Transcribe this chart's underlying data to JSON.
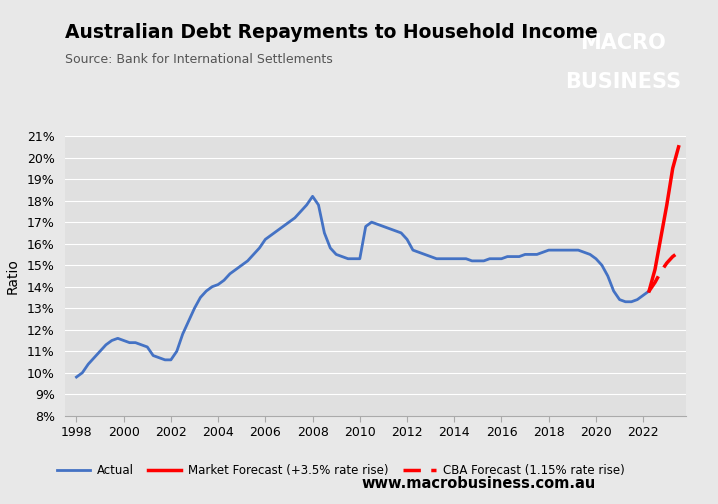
{
  "title": "Australian Debt Repayments to Household Income",
  "source": "Source: Bank for International Settlements",
  "ylabel": "Ratio",
  "website": "www.macrobusiness.com.au",
  "background_color": "#e8e8e8",
  "plot_bg_color": "#e0e0e0",
  "actual_color": "#4472C4",
  "forecast_solid_color": "#FF0000",
  "forecast_dashed_color": "#FF0000",
  "ylim": [
    0.08,
    0.21
  ],
  "yticks": [
    0.08,
    0.09,
    0.1,
    0.11,
    0.12,
    0.13,
    0.14,
    0.15,
    0.16,
    0.17,
    0.18,
    0.19,
    0.2,
    0.21
  ],
  "xlim": [
    1997.5,
    2023.8
  ],
  "xticks": [
    1998,
    2000,
    2002,
    2004,
    2006,
    2008,
    2010,
    2012,
    2014,
    2016,
    2018,
    2020,
    2022
  ],
  "actual_x": [
    1998,
    1998.25,
    1998.5,
    1998.75,
    1999,
    1999.25,
    1999.5,
    1999.75,
    2000,
    2000.25,
    2000.5,
    2000.75,
    2001,
    2001.25,
    2001.5,
    2001.75,
    2002,
    2002.25,
    2002.5,
    2002.75,
    2003,
    2003.25,
    2003.5,
    2003.75,
    2004,
    2004.25,
    2004.5,
    2004.75,
    2005,
    2005.25,
    2005.5,
    2005.75,
    2006,
    2006.25,
    2006.5,
    2006.75,
    2007,
    2007.25,
    2007.5,
    2007.75,
    2008,
    2008.25,
    2008.5,
    2008.75,
    2009,
    2009.25,
    2009.5,
    2009.75,
    2010,
    2010.25,
    2010.5,
    2010.75,
    2011,
    2011.25,
    2011.5,
    2011.75,
    2012,
    2012.25,
    2012.5,
    2012.75,
    2013,
    2013.25,
    2013.5,
    2013.75,
    2014,
    2014.25,
    2014.5,
    2014.75,
    2015,
    2015.25,
    2015.5,
    2015.75,
    2016,
    2016.25,
    2016.5,
    2016.75,
    2017,
    2017.25,
    2017.5,
    2017.75,
    2018,
    2018.25,
    2018.5,
    2018.75,
    2019,
    2019.25,
    2019.5,
    2019.75,
    2020,
    2020.25,
    2020.5,
    2020.75,
    2021,
    2021.25,
    2021.5,
    2021.75,
    2022,
    2022.25
  ],
  "actual_y": [
    0.098,
    0.1,
    0.104,
    0.107,
    0.11,
    0.113,
    0.115,
    0.116,
    0.115,
    0.114,
    0.114,
    0.113,
    0.112,
    0.108,
    0.107,
    0.106,
    0.106,
    0.11,
    0.118,
    0.124,
    0.13,
    0.135,
    0.138,
    0.14,
    0.141,
    0.143,
    0.146,
    0.148,
    0.15,
    0.152,
    0.155,
    0.158,
    0.162,
    0.164,
    0.166,
    0.168,
    0.17,
    0.172,
    0.175,
    0.178,
    0.182,
    0.178,
    0.165,
    0.158,
    0.155,
    0.154,
    0.153,
    0.153,
    0.153,
    0.168,
    0.17,
    0.169,
    0.168,
    0.167,
    0.166,
    0.165,
    0.162,
    0.157,
    0.156,
    0.155,
    0.154,
    0.153,
    0.153,
    0.153,
    0.153,
    0.153,
    0.153,
    0.152,
    0.152,
    0.152,
    0.153,
    0.153,
    0.153,
    0.154,
    0.154,
    0.154,
    0.155,
    0.155,
    0.155,
    0.156,
    0.157,
    0.157,
    0.157,
    0.157,
    0.157,
    0.157,
    0.156,
    0.155,
    0.153,
    0.15,
    0.145,
    0.138,
    0.134,
    0.133,
    0.133,
    0.134,
    0.136,
    0.138
  ],
  "market_forecast_x": [
    2022.25,
    2022.5,
    2022.75,
    2023,
    2023.25,
    2023.5
  ],
  "market_forecast_y": [
    0.138,
    0.148,
    0.163,
    0.178,
    0.195,
    0.205
  ],
  "cba_forecast_x": [
    2022.25,
    2022.5,
    2022.75,
    2023,
    2023.25,
    2023.5
  ],
  "cba_forecast_y": [
    0.138,
    0.142,
    0.147,
    0.151,
    0.154,
    0.156
  ],
  "legend_actual_label": "Actual",
  "legend_market_label": "Market Forecast (+3.5% rate rise)",
  "legend_cba_label": "CBA Forecast (1.15% rate rise)",
  "macro_box_color": "#CC0000",
  "macro_line1": "MACRO",
  "macro_line2": "BUSINESS"
}
